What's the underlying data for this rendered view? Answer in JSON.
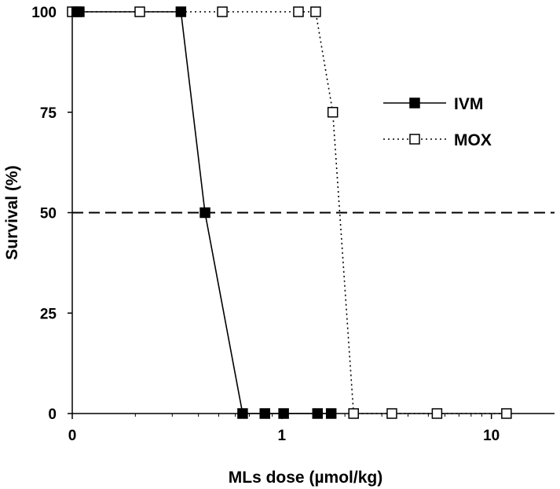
{
  "chart_data": {
    "type": "line",
    "xlabel": "MLs dose (µmol/kg)",
    "ylabel": "Survival (%)",
    "x_scale": "log",
    "x_ticks": [
      {
        "label": "0",
        "value": 0.1
      },
      {
        "label": "1",
        "value": 1
      },
      {
        "label": "10",
        "value": 10
      }
    ],
    "xlim": [
      0.1,
      20
    ],
    "ylim": [
      0,
      100
    ],
    "y_ticks": [
      0,
      25,
      50,
      75,
      100
    ],
    "grid": false,
    "legend_position": "right",
    "reference_line": {
      "y": 50,
      "style": "dashed"
    },
    "series": [
      {
        "name": "IVM",
        "line_style": "solid",
        "marker": "filled-square",
        "color": "#000000",
        "points": [
          {
            "x": 0.105,
            "y": 100
          },
          {
            "x": 0.108,
            "y": 100
          },
          {
            "x": 0.33,
            "y": 100
          },
          {
            "x": 0.43,
            "y": 50
          },
          {
            "x": 0.65,
            "y": 0
          },
          {
            "x": 0.83,
            "y": 0
          },
          {
            "x": 1.02,
            "y": 0
          },
          {
            "x": 1.48,
            "y": 0
          },
          {
            "x": 1.72,
            "y": 0
          }
        ]
      },
      {
        "name": "MOX",
        "line_style": "dotted",
        "marker": "open-square",
        "color": "#000000",
        "points": [
          {
            "x": 0.1,
            "y": 100
          },
          {
            "x": 0.21,
            "y": 100
          },
          {
            "x": 0.52,
            "y": 100
          },
          {
            "x": 1.2,
            "y": 100
          },
          {
            "x": 1.45,
            "y": 100
          },
          {
            "x": 1.75,
            "y": 75
          },
          {
            "x": 2.2,
            "y": 0
          },
          {
            "x": 3.35,
            "y": 0
          },
          {
            "x": 5.5,
            "y": 0
          },
          {
            "x": 11.8,
            "y": 0
          }
        ]
      }
    ]
  }
}
